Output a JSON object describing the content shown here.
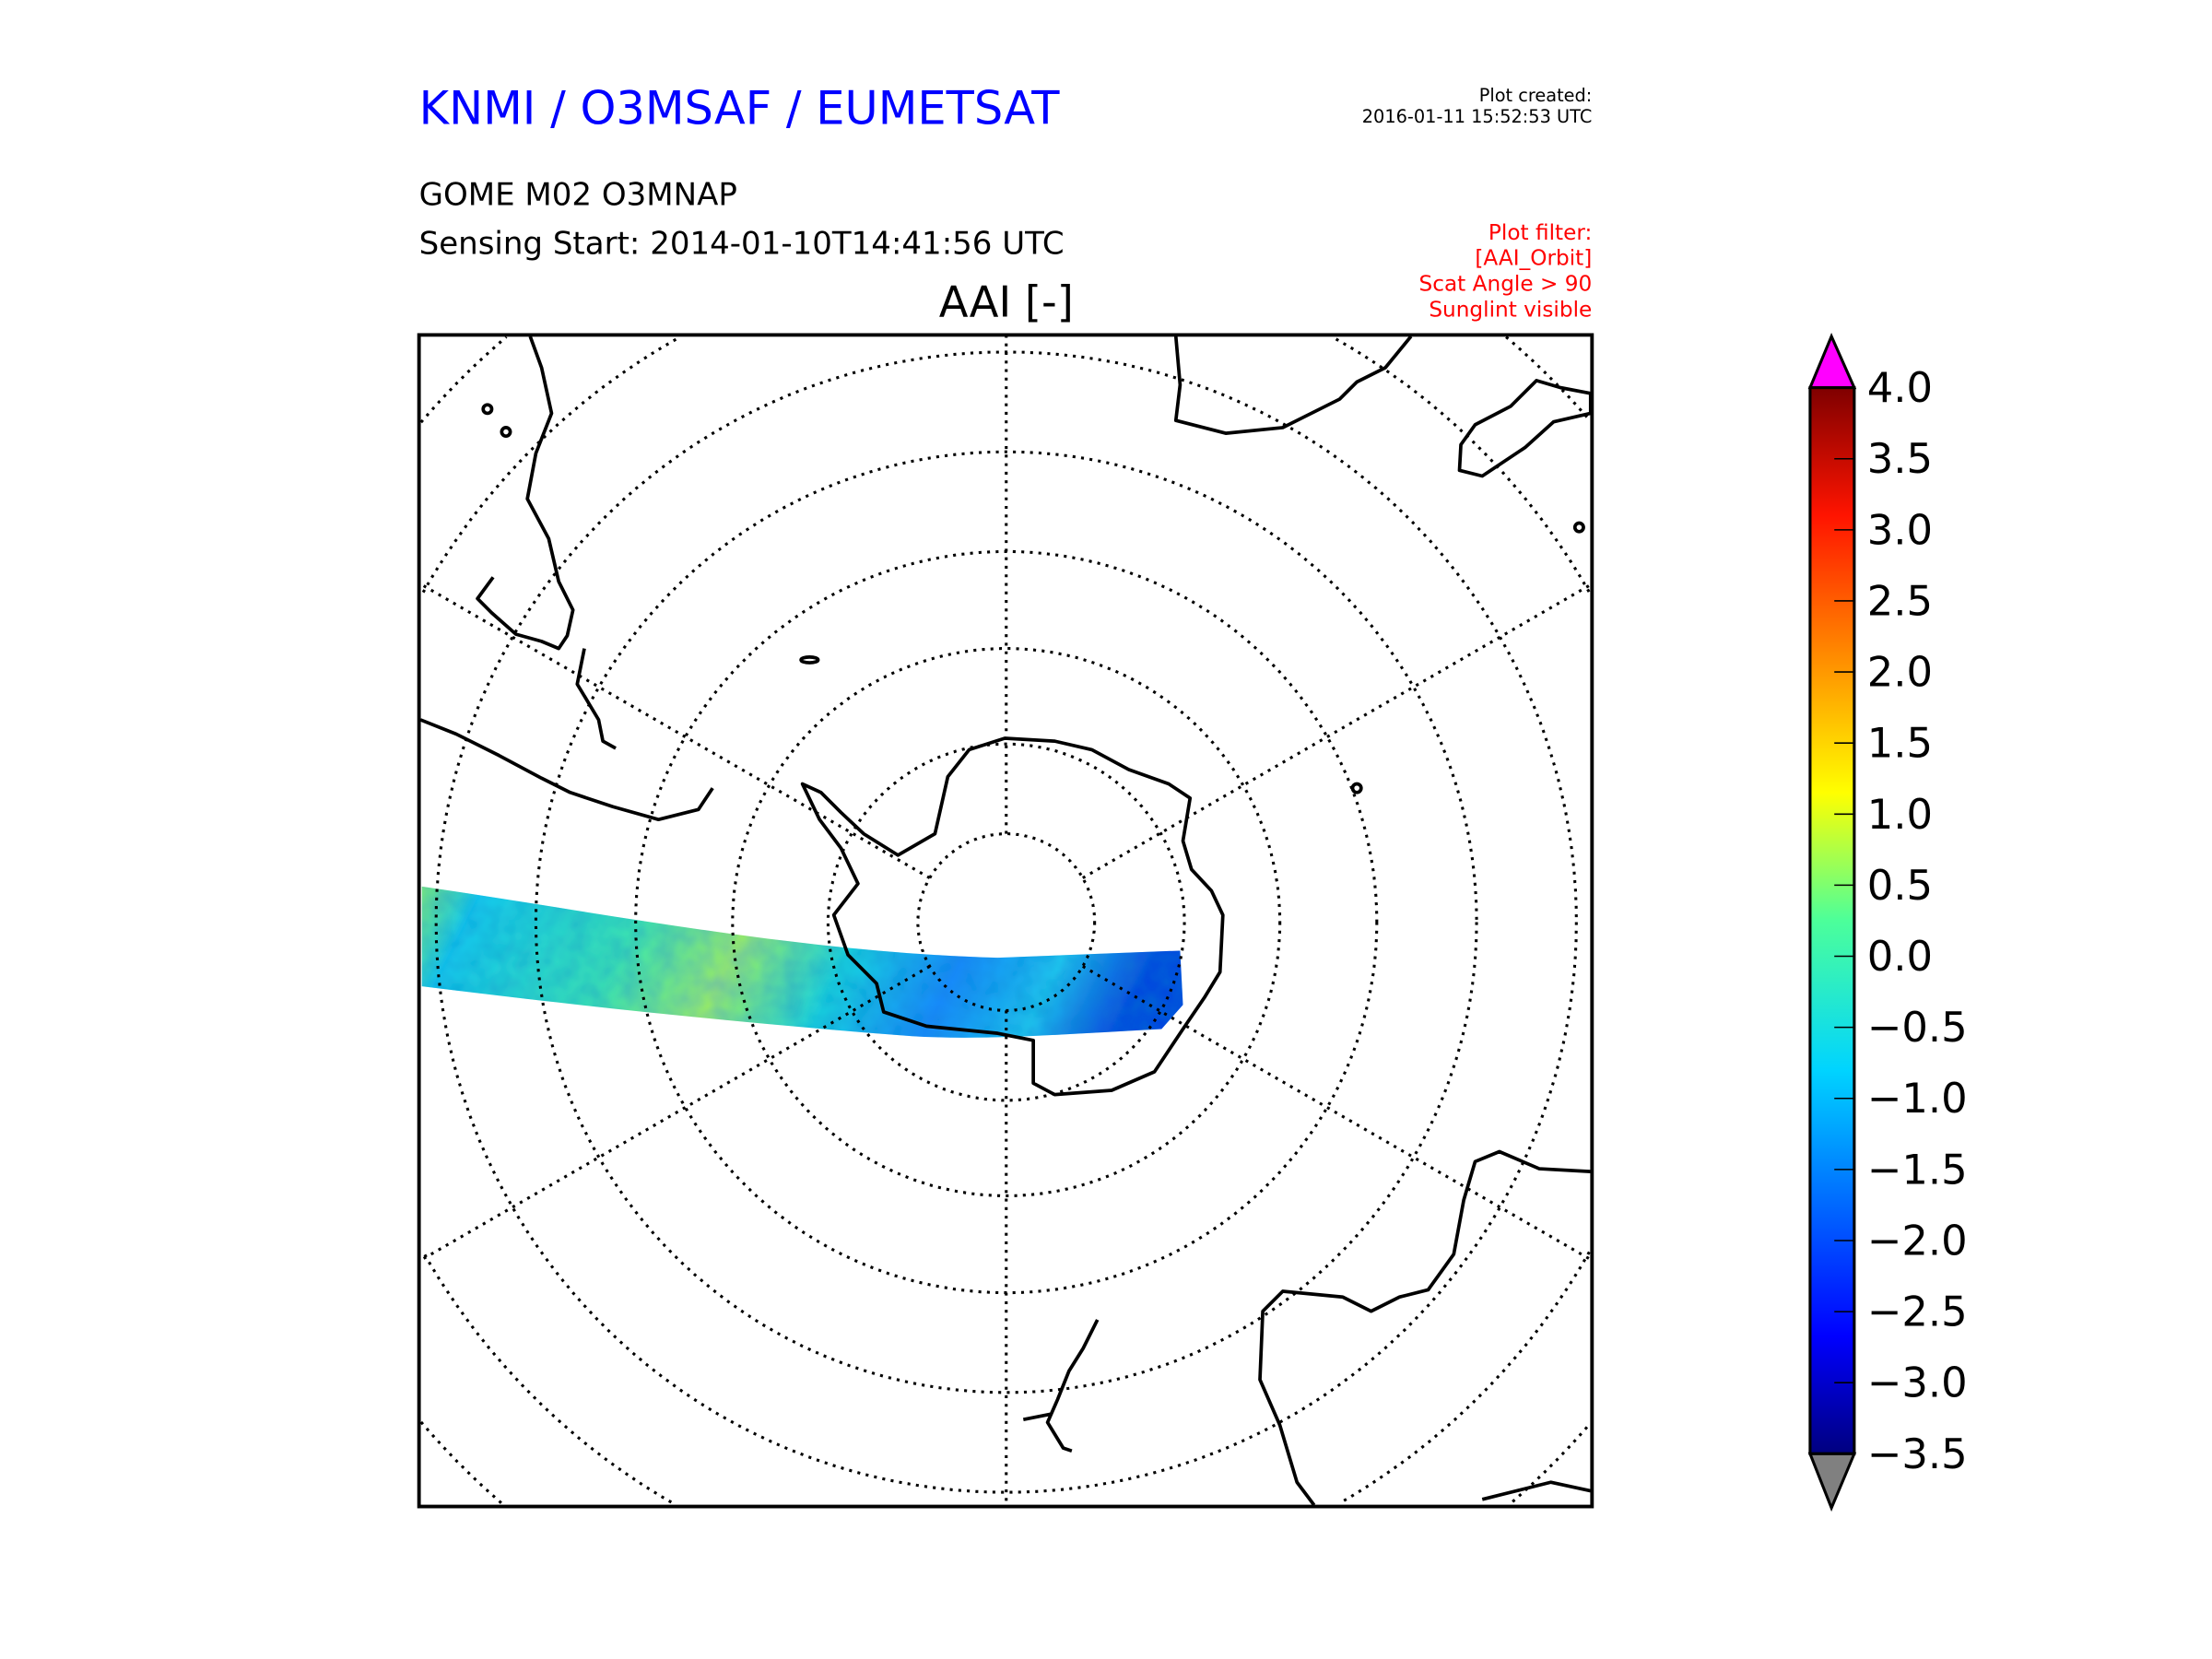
{
  "header": {
    "title": "KNMI / O3MSAF / EUMETSAT",
    "title_color": "#0000ff",
    "product": "GOME M02 O3MNAP",
    "sensing_start": "Sensing Start: 2014-01-10T14:41:56 UTC",
    "plot_created_label": "Plot created:",
    "plot_created_value": "2016-01-11 15:52:53 UTC"
  },
  "filter": {
    "color": "#ff0000",
    "lines": [
      "Plot filter:",
      "[AAI_Orbit]",
      "Scat Angle > 90",
      "Sunglint visible"
    ]
  },
  "map": {
    "title": "AAI [-]",
    "projection": "south polar stereographic",
    "swath_colors": [
      "#2fe4a8",
      "#19d6e8",
      "#1aa8ff",
      "#86f06a"
    ]
  },
  "colorbar": {
    "min": -3.5,
    "max": 4.0,
    "ticks": [
      "4.0",
      "3.5",
      "3.0",
      "2.5",
      "2.0",
      "1.5",
      "1.0",
      "0.5",
      "0.0",
      "−0.5",
      "−1.0",
      "−1.5",
      "−2.0",
      "−2.5",
      "−3.0",
      "−3.5"
    ],
    "over_color": "#ff00ff",
    "under_color": "#808080"
  }
}
